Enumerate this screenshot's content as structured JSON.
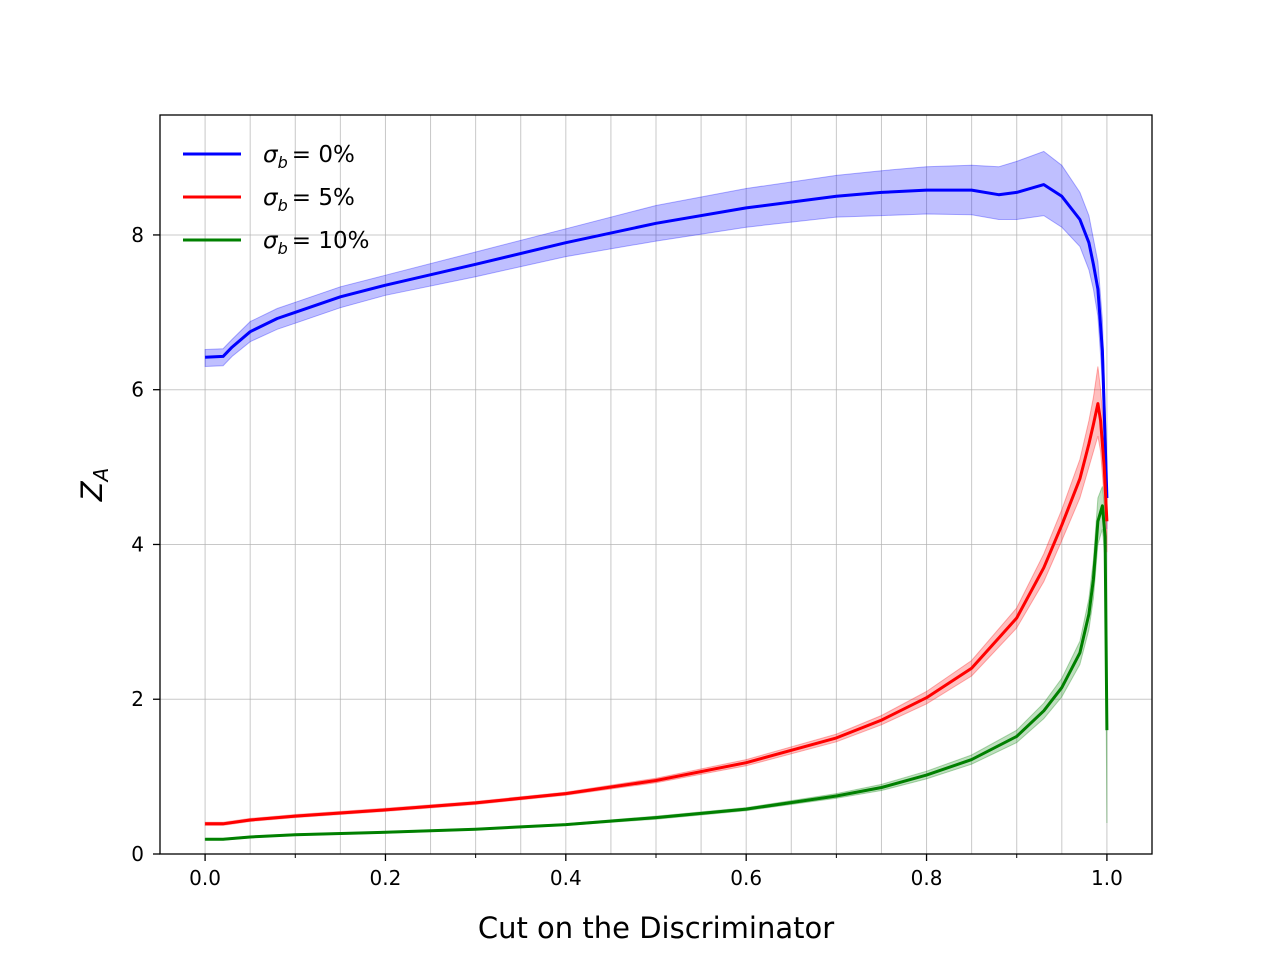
{
  "chart_data": {
    "type": "line",
    "title": "",
    "xlabel": "Cut on the Discriminator",
    "ylabel_main": "Z",
    "ylabel_sub": "A",
    "xlim": [
      -0.05,
      1.05
    ],
    "ylim": [
      0,
      9.55
    ],
    "x_major_ticks": [
      0.0,
      0.2,
      0.4,
      0.6,
      0.8,
      1.0
    ],
    "x_major_tick_labels": [
      "0.0",
      "0.2",
      "0.4",
      "0.6",
      "0.8",
      "1.0"
    ],
    "x_minor_ticks": [
      0.1,
      0.3,
      0.5,
      0.7,
      0.9
    ],
    "x_grid_lines": [
      0.0,
      0.05,
      0.1,
      0.15,
      0.2,
      0.25,
      0.3,
      0.35,
      0.4,
      0.45,
      0.5,
      0.55,
      0.6,
      0.65,
      0.7,
      0.75,
      0.8,
      0.85,
      0.9,
      0.95,
      1.0
    ],
    "y_ticks": [
      0,
      2,
      4,
      6,
      8
    ],
    "y_tick_labels": [
      "0",
      "2",
      "4",
      "6",
      "8"
    ],
    "grid": true,
    "legend_position": "upper-left",
    "series": [
      {
        "name_symbol": "σ",
        "name_sub": "b",
        "name_rest": "= 0%",
        "color": "#0000ff",
        "band_color": "#0000ff",
        "x": [
          0.0,
          0.02,
          0.03,
          0.05,
          0.08,
          0.1,
          0.15,
          0.2,
          0.3,
          0.4,
          0.5,
          0.6,
          0.7,
          0.75,
          0.8,
          0.85,
          0.88,
          0.9,
          0.93,
          0.95,
          0.97,
          0.98,
          0.985,
          0.99,
          0.995,
          1.0
        ],
        "y": [
          6.42,
          6.43,
          6.55,
          6.75,
          6.92,
          7.0,
          7.2,
          7.35,
          7.62,
          7.9,
          8.15,
          8.35,
          8.5,
          8.55,
          8.58,
          8.58,
          8.52,
          8.55,
          8.65,
          8.5,
          8.2,
          7.9,
          7.62,
          7.3,
          6.5,
          4.6
        ],
        "upper": [
          6.52,
          6.53,
          6.65,
          6.88,
          7.05,
          7.13,
          7.33,
          7.48,
          7.78,
          8.08,
          8.38,
          8.6,
          8.77,
          8.83,
          8.88,
          8.9,
          8.88,
          8.95,
          9.08,
          8.9,
          8.55,
          8.25,
          7.95,
          7.65,
          6.9,
          5.0
        ],
        "lower": [
          6.3,
          6.31,
          6.43,
          6.62,
          6.78,
          6.86,
          7.06,
          7.22,
          7.46,
          7.72,
          7.92,
          8.1,
          8.23,
          8.25,
          8.27,
          8.26,
          8.2,
          8.2,
          8.25,
          8.1,
          7.85,
          7.55,
          7.3,
          6.95,
          6.1,
          4.2
        ]
      },
      {
        "name_symbol": "σ",
        "name_sub": "b",
        "name_rest": "= 5%",
        "color": "#ff0000",
        "band_color": "#ff0000",
        "x": [
          0.0,
          0.02,
          0.05,
          0.1,
          0.2,
          0.3,
          0.4,
          0.5,
          0.6,
          0.7,
          0.75,
          0.8,
          0.85,
          0.9,
          0.93,
          0.95,
          0.97,
          0.98,
          0.985,
          0.99,
          0.993,
          0.997,
          1.0
        ],
        "y": [
          0.39,
          0.39,
          0.44,
          0.49,
          0.57,
          0.66,
          0.78,
          0.95,
          1.18,
          1.5,
          1.73,
          2.02,
          2.4,
          3.05,
          3.7,
          4.25,
          4.85,
          5.3,
          5.55,
          5.82,
          5.6,
          5.0,
          4.3
        ],
        "upper": [
          0.41,
          0.41,
          0.46,
          0.51,
          0.59,
          0.68,
          0.8,
          0.98,
          1.22,
          1.55,
          1.79,
          2.1,
          2.5,
          3.18,
          3.88,
          4.45,
          5.1,
          5.6,
          5.9,
          6.3,
          6.0,
          5.4,
          4.7
        ],
        "lower": [
          0.37,
          0.37,
          0.42,
          0.47,
          0.55,
          0.64,
          0.76,
          0.92,
          1.14,
          1.45,
          1.67,
          1.94,
          2.3,
          2.92,
          3.52,
          4.05,
          4.6,
          5.0,
          5.2,
          5.4,
          5.2,
          4.6,
          3.9
        ]
      },
      {
        "name_symbol": "σ",
        "name_sub": "b",
        "name_rest": "= 10%",
        "color": "#008000",
        "band_color": "#008000",
        "x": [
          0.0,
          0.02,
          0.05,
          0.1,
          0.2,
          0.3,
          0.4,
          0.5,
          0.6,
          0.7,
          0.75,
          0.8,
          0.85,
          0.9,
          0.93,
          0.95,
          0.97,
          0.98,
          0.985,
          0.99,
          0.995,
          0.998,
          1.0
        ],
        "y": [
          0.19,
          0.19,
          0.22,
          0.25,
          0.28,
          0.32,
          0.38,
          0.47,
          0.58,
          0.75,
          0.86,
          1.02,
          1.22,
          1.52,
          1.85,
          2.15,
          2.6,
          3.1,
          3.55,
          4.3,
          4.5,
          4.1,
          1.6
        ],
        "upper": [
          0.2,
          0.2,
          0.23,
          0.26,
          0.29,
          0.33,
          0.39,
          0.49,
          0.6,
          0.78,
          0.9,
          1.07,
          1.28,
          1.6,
          1.95,
          2.27,
          2.75,
          3.3,
          3.8,
          4.6,
          4.75,
          4.4,
          1.7
        ],
        "lower": [
          0.18,
          0.18,
          0.21,
          0.24,
          0.27,
          0.31,
          0.37,
          0.45,
          0.56,
          0.72,
          0.82,
          0.97,
          1.16,
          1.44,
          1.75,
          2.03,
          2.45,
          2.9,
          3.3,
          4.0,
          4.2,
          3.8,
          0.4
        ]
      }
    ]
  }
}
